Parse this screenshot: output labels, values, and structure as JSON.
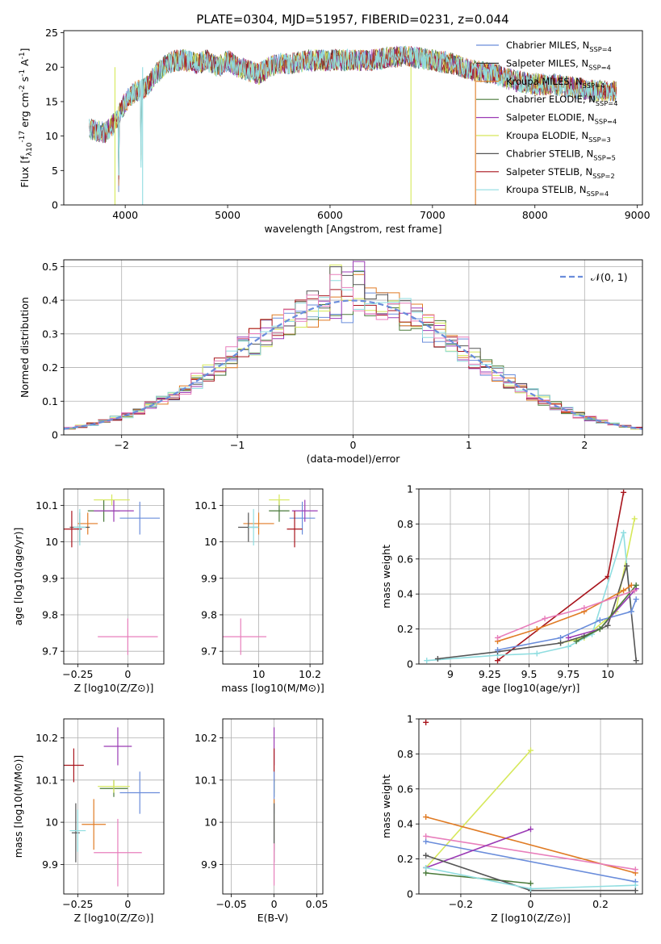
{
  "figure": {
    "title": "PLATE=0304, MJD=51957, FIBERID=0231, z=0.044"
  },
  "chart_data": [
    {
      "id": "spectrum",
      "type": "line",
      "title": "PLATE=0304, MJD=51957, FIBERID=0231, z=0.044",
      "xlabel": "wavelength [Angstrom, rest frame]",
      "ylabel": "Flux [f_λ10^-17 erg cm^-2 s^-1 A^-1]",
      "xlim": [
        3400,
        9050
      ],
      "ylim": [
        0,
        25.3
      ],
      "xticks": [
        4000,
        5000,
        6000,
        7000,
        8000,
        9000
      ],
      "yticks": [
        0,
        5,
        10,
        15,
        20,
        25
      ],
      "grid": false,
      "legend": "top-right",
      "series": [
        {
          "name": "Chabrier MILES, N_SSP=4",
          "color": "#6a8ddb"
        },
        {
          "name": "Salpeter MILES, N_SSP=4",
          "color": "#3a3a3a"
        },
        {
          "name": "Kroupa MILES, N_SSP=4",
          "color": "#e07b24"
        },
        {
          "name": "Chabrier ELODIE, N_SSP=4",
          "color": "#4a7a3a"
        },
        {
          "name": "Salpeter ELODIE, N_SSP=4",
          "color": "#9b3bb5"
        },
        {
          "name": "Kroupa ELODIE, N_SSP=3",
          "color": "#d6e85a"
        },
        {
          "name": "Chabrier STELIB, N_SSP=5",
          "color": "#555555"
        },
        {
          "name": "Salpeter STELIB, N_SSP=2",
          "color": "#a8141c"
        },
        {
          "name": "Kroupa STELIB, N_SSP=4",
          "color": "#8fdde0"
        }
      ],
      "spectrum_envelope": {
        "x": [
          3650,
          3800,
          3900,
          4000,
          4100,
          4200,
          4300,
          4400,
          4500,
          4600,
          4700,
          4800,
          4900,
          5000,
          5100,
          5200,
          5300,
          5400,
          5500,
          5600,
          5800,
          6000,
          6200,
          6400,
          6600,
          6800,
          7000,
          7200,
          7400,
          7600,
          7800,
          8000,
          8200,
          8400,
          8600,
          8800
        ],
        "y": [
          11,
          10.5,
          12,
          15,
          16.5,
          17,
          19,
          20.5,
          21,
          21,
          20.5,
          21,
          20,
          21,
          20,
          19.5,
          19,
          20,
          20.5,
          20.5,
          21,
          21,
          21,
          21,
          21.5,
          21.5,
          21,
          20.5,
          19.5,
          19,
          18,
          17.5,
          17.5,
          17,
          16.5,
          16.5
        ]
      }
    },
    {
      "id": "residuals",
      "type": "line",
      "xlabel": "(data-model)/error",
      "ylabel": "Normed distribution",
      "xlim": [
        -2.5,
        2.5
      ],
      "ylim": [
        0,
        0.52
      ],
      "xticks": [
        -2,
        -1,
        0,
        1,
        2
      ],
      "yticks": [
        0.0,
        0.1,
        0.2,
        0.3,
        0.4,
        0.5
      ],
      "grid": true,
      "legend": "top-right",
      "series": [
        {
          "name": "𝒩(0, 1)",
          "color": "#6a8ddb",
          "style": "dashed"
        }
      ]
    },
    {
      "id": "age_vs_Z",
      "type": "scatter",
      "xlabel": "Z [log10(Z/Z⊙)]",
      "ylabel": "age  [log10(age/yr)]",
      "xlim": [
        -0.32,
        0.18
      ],
      "ylim": [
        9.665,
        10.145
      ],
      "xticks": [
        -0.25,
        0.0
      ],
      "yticks": [
        9.7,
        9.8,
        9.9,
        10.0,
        10.1
      ],
      "grid": true,
      "points": [
        {
          "color": "#6a8ddb",
          "x": 0.06,
          "y": 10.065,
          "xerr": 0.1,
          "yerr": 0.045
        },
        {
          "color": "#e07b24",
          "x": -0.2,
          "y": 10.05,
          "xerr": 0.05,
          "yerr": 0.03
        },
        {
          "color": "#4a7a3a",
          "x": -0.12,
          "y": 10.085,
          "xerr": 0.08,
          "yerr": 0.03
        },
        {
          "color": "#9b3bb5",
          "x": -0.07,
          "y": 10.085,
          "xerr": 0.1,
          "yerr": 0.03
        },
        {
          "color": "#d6e85a",
          "x": -0.08,
          "y": 10.115,
          "xerr": 0.09,
          "yerr": 0.015
        },
        {
          "color": "#555555",
          "x": -0.24,
          "y": 10.04,
          "xerr": 0.05,
          "yerr": 0.04
        },
        {
          "color": "#a8141c",
          "x": -0.28,
          "y": 10.035,
          "xerr": 0.05,
          "yerr": 0.05
        },
        {
          "color": "#8fdde0",
          "x": -0.24,
          "y": 10.04,
          "xerr": 0.03,
          "yerr": 0.05
        },
        {
          "color": "#e87fbc",
          "x": 0.0,
          "y": 9.74,
          "xerr": 0.15,
          "yerr": 0.05
        }
      ]
    },
    {
      "id": "age_vs_mass",
      "type": "scatter",
      "xlabel": "mass [log10(M/M⊙)]",
      "xlim": [
        9.86,
        10.25
      ],
      "ylim": [
        9.665,
        10.145
      ],
      "xticks": [
        10.0,
        10.2
      ],
      "yticks": [
        9.7,
        9.8,
        9.9,
        10.0,
        10.1
      ],
      "grid": true,
      "points": [
        {
          "color": "#6a8ddb",
          "x": 10.17,
          "y": 10.065,
          "xerr": 0.05,
          "yerr": 0.045
        },
        {
          "color": "#e07b24",
          "x": 10.0,
          "y": 10.05,
          "xerr": 0.06,
          "yerr": 0.03
        },
        {
          "color": "#4a7a3a",
          "x": 10.08,
          "y": 10.085,
          "xerr": 0.04,
          "yerr": 0.03
        },
        {
          "color": "#9b3bb5",
          "x": 10.18,
          "y": 10.085,
          "xerr": 0.05,
          "yerr": 0.03
        },
        {
          "color": "#d6e85a",
          "x": 10.08,
          "y": 10.115,
          "xerr": 0.04,
          "yerr": 0.015
        },
        {
          "color": "#555555",
          "x": 9.96,
          "y": 10.04,
          "xerr": 0.04,
          "yerr": 0.04
        },
        {
          "color": "#a8141c",
          "x": 10.14,
          "y": 10.035,
          "xerr": 0.03,
          "yerr": 0.05
        },
        {
          "color": "#8fdde0",
          "x": 9.98,
          "y": 10.04,
          "xerr": 0.02,
          "yerr": 0.05
        },
        {
          "color": "#e87fbc",
          "x": 9.93,
          "y": 9.74,
          "xerr": 0.1,
          "yerr": 0.05
        }
      ]
    },
    {
      "id": "mass_weight_vs_age",
      "type": "line",
      "xlabel": "age  [log10(age/yr)]",
      "ylabel": "mass weight",
      "xlim": [
        8.8,
        10.22
      ],
      "ylim": [
        0,
        1.0
      ],
      "xticks": [
        9.0,
        9.25,
        9.5,
        9.75,
        10.0
      ],
      "yticks": [
        0.0,
        0.2,
        0.4,
        0.6,
        0.8,
        1.0
      ],
      "grid": true,
      "series": [
        {
          "color": "#a8141c",
          "x": [
            9.3,
            10.0,
            10.1
          ],
          "y": [
            0.02,
            0.5,
            0.98
          ]
        },
        {
          "color": "#d6e85a",
          "x": [
            9.7,
            9.85,
            10.05,
            10.17
          ],
          "y": [
            0.12,
            0.15,
            0.3,
            0.83
          ]
        },
        {
          "color": "#8fdde0",
          "x": [
            8.85,
            9.3,
            9.55,
            9.75,
            9.9,
            10.1,
            10.15
          ],
          "y": [
            0.02,
            0.05,
            0.06,
            0.1,
            0.17,
            0.75,
            0.3
          ]
        },
        {
          "color": "#555555",
          "x": [
            8.92,
            9.3,
            9.7,
            9.85,
            10.0,
            10.12,
            10.18
          ],
          "y": [
            0.03,
            0.07,
            0.12,
            0.16,
            0.22,
            0.56,
            0.02
          ]
        },
        {
          "color": "#e07b24",
          "x": [
            9.3,
            9.55,
            9.85,
            10.1,
            10.15
          ],
          "y": [
            0.13,
            0.2,
            0.3,
            0.42,
            0.45
          ]
        },
        {
          "color": "#6a8ddb",
          "x": [
            9.3,
            9.7,
            9.95,
            10.15,
            10.18
          ],
          "y": [
            0.08,
            0.15,
            0.25,
            0.3,
            0.37
          ]
        },
        {
          "color": "#9b3bb5",
          "x": [
            9.75,
            9.95,
            10.18
          ],
          "y": [
            0.15,
            0.2,
            0.43
          ]
        },
        {
          "color": "#4a7a3a",
          "x": [
            9.8,
            9.95,
            10.18
          ],
          "y": [
            0.13,
            0.2,
            0.45
          ]
        },
        {
          "color": "#e87fbc",
          "x": [
            9.3,
            9.6,
            9.85,
            10.17
          ],
          "y": [
            0.15,
            0.26,
            0.32,
            0.42
          ]
        }
      ]
    },
    {
      "id": "mass_vs_Z",
      "type": "scatter",
      "xlabel": "Z [log10(Z/Z⊙)]",
      "ylabel": "mass [log10(M/M⊙)]",
      "xlim": [
        -0.32,
        0.18
      ],
      "ylim": [
        9.83,
        10.245
      ],
      "xticks": [
        -0.25,
        0.0
      ],
      "yticks": [
        9.9,
        10.0,
        10.1,
        10.2
      ],
      "grid": true,
      "points": [
        {
          "color": "#6a8ddb",
          "x": 0.06,
          "y": 10.07,
          "xerr": 0.1,
          "yerr": 0.05
        },
        {
          "color": "#e07b24",
          "x": -0.17,
          "y": 9.995,
          "xerr": 0.06,
          "yerr": 0.06
        },
        {
          "color": "#4a7a3a",
          "x": -0.07,
          "y": 10.08,
          "xerr": 0.07,
          "yerr": 0.02
        },
        {
          "color": "#9b3bb5",
          "x": -0.05,
          "y": 10.18,
          "xerr": 0.07,
          "yerr": 0.045
        },
        {
          "color": "#d6e85a",
          "x": -0.07,
          "y": 10.085,
          "xerr": 0.08,
          "yerr": 0.015
        },
        {
          "color": "#555555",
          "x": -0.26,
          "y": 9.975,
          "xerr": 0.02,
          "yerr": 0.07
        },
        {
          "color": "#a8141c",
          "x": -0.27,
          "y": 10.135,
          "xerr": 0.05,
          "yerr": 0.04
        },
        {
          "color": "#8fdde0",
          "x": -0.25,
          "y": 9.98,
          "xerr": 0.04,
          "yerr": 0.05
        },
        {
          "color": "#e87fbc",
          "x": -0.05,
          "y": 9.928,
          "xerr": 0.12,
          "yerr": 0.08
        }
      ]
    },
    {
      "id": "mass_vs_EBV",
      "type": "scatter",
      "xlabel": "E(B-V)",
      "xlim": [
        -0.06,
        0.057
      ],
      "ylim": [
        9.83,
        10.245
      ],
      "xticks": [
        -0.05,
        0.0,
        0.05
      ],
      "yticks": [
        9.9,
        10.0,
        10.1,
        10.2
      ],
      "grid": true,
      "points": [
        {
          "color": "#9b3bb5",
          "x": 0.0,
          "y": 10.18,
          "xerr": 0,
          "yerr": 0.045
        },
        {
          "color": "#a8141c",
          "x": 0.0,
          "y": 10.135,
          "xerr": 0,
          "yerr": 0.04
        },
        {
          "color": "#d6e85a",
          "x": 0.0,
          "y": 10.085,
          "xerr": 0,
          "yerr": 0.015
        },
        {
          "color": "#4a7a3a",
          "x": 0.0,
          "y": 10.08,
          "xerr": 0,
          "yerr": 0.02
        },
        {
          "color": "#6a8ddb",
          "x": 0.0,
          "y": 10.07,
          "xerr": 0,
          "yerr": 0.05
        },
        {
          "color": "#e07b24",
          "x": 0.0,
          "y": 9.995,
          "xerr": 0,
          "yerr": 0.06
        },
        {
          "color": "#8fdde0",
          "x": 0.0,
          "y": 9.98,
          "xerr": 0,
          "yerr": 0.05
        },
        {
          "color": "#555555",
          "x": 0.0,
          "y": 9.975,
          "xerr": 0,
          "yerr": 0.07
        },
        {
          "color": "#e87fbc",
          "x": 0.0,
          "y": 9.9,
          "xerr": 0,
          "yerr": 0.05
        }
      ]
    },
    {
      "id": "mass_weight_vs_Z",
      "type": "line",
      "xlabel": "Z [log10(Z/Z⊙)]",
      "ylabel": "mass weight",
      "xlim": [
        -0.32,
        0.32
      ],
      "ylim": [
        0,
        1.0
      ],
      "xticks": [
        -0.2,
        0.0,
        0.2
      ],
      "yticks": [
        0.0,
        0.2,
        0.4,
        0.6,
        0.8,
        1.0
      ],
      "grid": true,
      "series": [
        {
          "color": "#d6e85a",
          "x": [
            -0.3,
            0.0
          ],
          "y": [
            0.15,
            0.82
          ]
        },
        {
          "color": "#e07b24",
          "x": [
            -0.3,
            0.3
          ],
          "y": [
            0.44,
            0.12
          ]
        },
        {
          "color": "#6a8ddb",
          "x": [
            -0.3,
            0.3
          ],
          "y": [
            0.3,
            0.07
          ]
        },
        {
          "color": "#e87fbc",
          "x": [
            -0.3,
            0.3
          ],
          "y": [
            0.33,
            0.14
          ]
        },
        {
          "color": "#9b3bb5",
          "x": [
            -0.3,
            0.0
          ],
          "y": [
            0.15,
            0.37
          ]
        },
        {
          "color": "#4a7a3a",
          "x": [
            -0.3,
            0.0
          ],
          "y": [
            0.12,
            0.06
          ]
        },
        {
          "color": "#555555",
          "x": [
            -0.3,
            0.0,
            0.3
          ],
          "y": [
            0.22,
            0.02,
            0.02
          ]
        },
        {
          "color": "#8fdde0",
          "x": [
            -0.3,
            0.0,
            0.3
          ],
          "y": [
            0.15,
            0.03,
            0.05
          ]
        },
        {
          "color": "#a8141c",
          "x": [
            -0.3
          ],
          "y": [
            0.98
          ]
        }
      ]
    }
  ]
}
